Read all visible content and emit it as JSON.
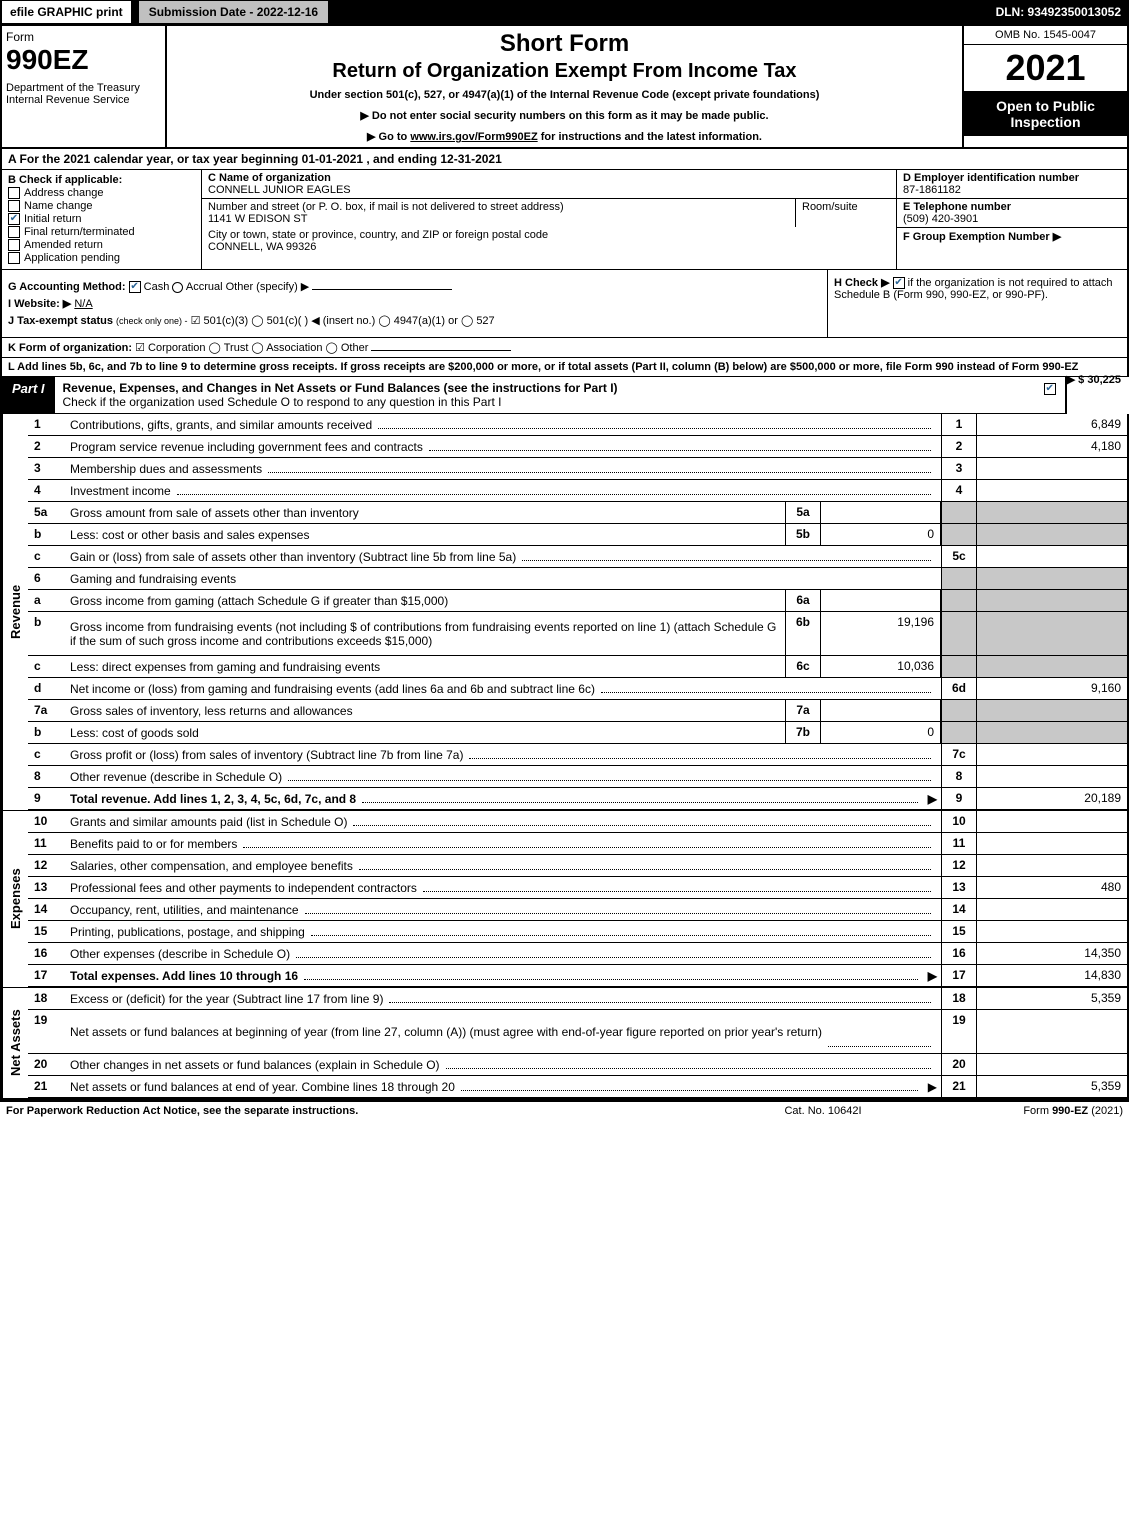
{
  "top": {
    "efile": "efile GRAPHIC print",
    "submission": "Submission Date - 2022-12-16",
    "dln": "DLN: 93492350013052"
  },
  "header": {
    "form_label": "Form",
    "form_no": "990EZ",
    "dept": "Department of the Treasury\nInternal Revenue Service",
    "title1": "Short Form",
    "title2": "Return of Organization Exempt From Income Tax",
    "subtitle": "Under section 501(c), 527, or 4947(a)(1) of the Internal Revenue Code (except private foundations)",
    "instr1": "▶ Do not enter social security numbers on this form as it may be made public.",
    "instr2_prefix": "▶ Go to ",
    "instr2_link": "www.irs.gov/Form990EZ",
    "instr2_suffix": " for instructions and the latest information.",
    "omb": "OMB No. 1545-0047",
    "year": "2021",
    "inspect": "Open to Public Inspection"
  },
  "section_a": "A  For the 2021 calendar year, or tax year beginning 01-01-2021 , and ending 12-31-2021",
  "section_b": {
    "label": "B  Check if applicable:",
    "items": [
      {
        "label": "Address change",
        "checked": false
      },
      {
        "label": "Name change",
        "checked": false
      },
      {
        "label": "Initial return",
        "checked": true
      },
      {
        "label": "Final return/terminated",
        "checked": false
      },
      {
        "label": "Amended return",
        "checked": false
      },
      {
        "label": "Application pending",
        "checked": false
      }
    ]
  },
  "section_c": {
    "name_label": "C Name of organization",
    "name": "CONNELL JUNIOR EAGLES",
    "street_label": "Number and street (or P. O. box, if mail is not delivered to street address)",
    "street": "1141 W EDISON ST",
    "room_label": "Room/suite",
    "city_label": "City or town, state or province, country, and ZIP or foreign postal code",
    "city": "CONNELL, WA  99326"
  },
  "section_d": {
    "label": "D Employer identification number",
    "value": "87-1861182"
  },
  "section_e": {
    "label": "E Telephone number",
    "value": "(509) 420-3901"
  },
  "section_f": {
    "label": "F Group Exemption Number  ▶"
  },
  "section_g": {
    "label": "G Accounting Method:",
    "cash": "Cash",
    "accrual": "Accrual",
    "other": "Other (specify) ▶"
  },
  "section_h": {
    "label": "H  Check ▶",
    "text": "if the organization is not required to attach Schedule B (Form 990, 990-EZ, or 990-PF)."
  },
  "section_i": {
    "label": "I Website: ▶",
    "value": "N/A"
  },
  "section_j": {
    "label": "J Tax-exempt status",
    "sub": "(check only one) -",
    "opts": "☑ 501(c)(3)  ◯ 501(c)(  ) ◀ (insert no.)  ◯ 4947(a)(1) or  ◯ 527"
  },
  "section_k": {
    "label": "K Form of organization:",
    "opts": "☑ Corporation  ◯ Trust  ◯ Association  ◯ Other"
  },
  "section_l": {
    "text": "L Add lines 5b, 6c, and 7b to line 9 to determine gross receipts. If gross receipts are $200,000 or more, or if total assets (Part II, column (B) below) are $500,000 or more, file Form 990 instead of Form 990-EZ",
    "value": "▶ $ 30,225"
  },
  "part1": {
    "label": "Part I",
    "title": "Revenue, Expenses, and Changes in Net Assets or Fund Balances (see the instructions for Part I)",
    "check_text": "Check if the organization used Schedule O to respond to any question in this Part I"
  },
  "sidelabels": {
    "revenue": "Revenue",
    "expenses": "Expenses",
    "netassets": "Net Assets"
  },
  "revenue_rows": [
    {
      "num": "1",
      "desc": "Contributions, gifts, grants, and similar amounts received",
      "ln": "1",
      "amt": "6,849"
    },
    {
      "num": "2",
      "desc": "Program service revenue including government fees and contracts",
      "ln": "2",
      "amt": "4,180"
    },
    {
      "num": "3",
      "desc": "Membership dues and assessments",
      "ln": "3",
      "amt": ""
    },
    {
      "num": "4",
      "desc": "Investment income",
      "ln": "4",
      "amt": ""
    },
    {
      "num": "5a",
      "desc": "Gross amount from sale of assets other than inventory",
      "sub": "5a",
      "subval": "",
      "shaded": true
    },
    {
      "num": "b",
      "desc": "Less: cost or other basis and sales expenses",
      "sub": "5b",
      "subval": "0",
      "shaded": true
    },
    {
      "num": "c",
      "desc": "Gain or (loss) from sale of assets other than inventory (Subtract line 5b from line 5a)",
      "ln": "5c",
      "amt": ""
    },
    {
      "num": "6",
      "desc": "Gaming and fundraising events",
      "shaded": true,
      "noline": true
    },
    {
      "num": "a",
      "desc": "Gross income from gaming (attach Schedule G if greater than $15,000)",
      "sub": "6a",
      "subval": "",
      "shaded": true
    },
    {
      "num": "b",
      "desc": "Gross income from fundraising events (not including $                of contributions from fundraising events reported on line 1) (attach Schedule G if the sum of such gross income and contributions exceeds $15,000)",
      "sub": "6b",
      "subval": "19,196",
      "shaded": true,
      "tall": true
    },
    {
      "num": "c",
      "desc": "Less: direct expenses from gaming and fundraising events",
      "sub": "6c",
      "subval": "10,036",
      "shaded": true
    },
    {
      "num": "d",
      "desc": "Net income or (loss) from gaming and fundraising events (add lines 6a and 6b and subtract line 6c)",
      "ln": "6d",
      "amt": "9,160"
    },
    {
      "num": "7a",
      "desc": "Gross sales of inventory, less returns and allowances",
      "sub": "7a",
      "subval": "",
      "shaded": true
    },
    {
      "num": "b",
      "desc": "Less: cost of goods sold",
      "sub": "7b",
      "subval": "0",
      "shaded": true
    },
    {
      "num": "c",
      "desc": "Gross profit or (loss) from sales of inventory (Subtract line 7b from line 7a)",
      "ln": "7c",
      "amt": ""
    },
    {
      "num": "8",
      "desc": "Other revenue (describe in Schedule O)",
      "ln": "8",
      "amt": ""
    },
    {
      "num": "9",
      "desc": "Total revenue. Add lines 1, 2, 3, 4, 5c, 6d, 7c, and 8",
      "ln": "9",
      "amt": "20,189",
      "total": true,
      "arrow": true
    }
  ],
  "expense_rows": [
    {
      "num": "10",
      "desc": "Grants and similar amounts paid (list in Schedule O)",
      "ln": "10",
      "amt": ""
    },
    {
      "num": "11",
      "desc": "Benefits paid to or for members",
      "ln": "11",
      "amt": ""
    },
    {
      "num": "12",
      "desc": "Salaries, other compensation, and employee benefits",
      "ln": "12",
      "amt": ""
    },
    {
      "num": "13",
      "desc": "Professional fees and other payments to independent contractors",
      "ln": "13",
      "amt": "480"
    },
    {
      "num": "14",
      "desc": "Occupancy, rent, utilities, and maintenance",
      "ln": "14",
      "amt": ""
    },
    {
      "num": "15",
      "desc": "Printing, publications, postage, and shipping",
      "ln": "15",
      "amt": ""
    },
    {
      "num": "16",
      "desc": "Other expenses (describe in Schedule O)",
      "ln": "16",
      "amt": "14,350"
    },
    {
      "num": "17",
      "desc": "Total expenses. Add lines 10 through 16",
      "ln": "17",
      "amt": "14,830",
      "total": true,
      "arrow": true
    }
  ],
  "netasset_rows": [
    {
      "num": "18",
      "desc": "Excess or (deficit) for the year (Subtract line 17 from line 9)",
      "ln": "18",
      "amt": "5,359"
    },
    {
      "num": "19",
      "desc": "Net assets or fund balances at beginning of year (from line 27, column (A)) (must agree with end-of-year figure reported on prior year's return)",
      "ln": "19",
      "amt": "",
      "tall": true
    },
    {
      "num": "20",
      "desc": "Other changes in net assets or fund balances (explain in Schedule O)",
      "ln": "20",
      "amt": ""
    },
    {
      "num": "21",
      "desc": "Net assets or fund balances at end of year. Combine lines 18 through 20",
      "ln": "21",
      "amt": "5,359",
      "arrow": true
    }
  ],
  "footer": {
    "left": "For Paperwork Reduction Act Notice, see the separate instructions.",
    "mid": "Cat. No. 10642I",
    "right_prefix": "Form ",
    "right_form": "990-EZ",
    "right_suffix": " (2021)"
  }
}
